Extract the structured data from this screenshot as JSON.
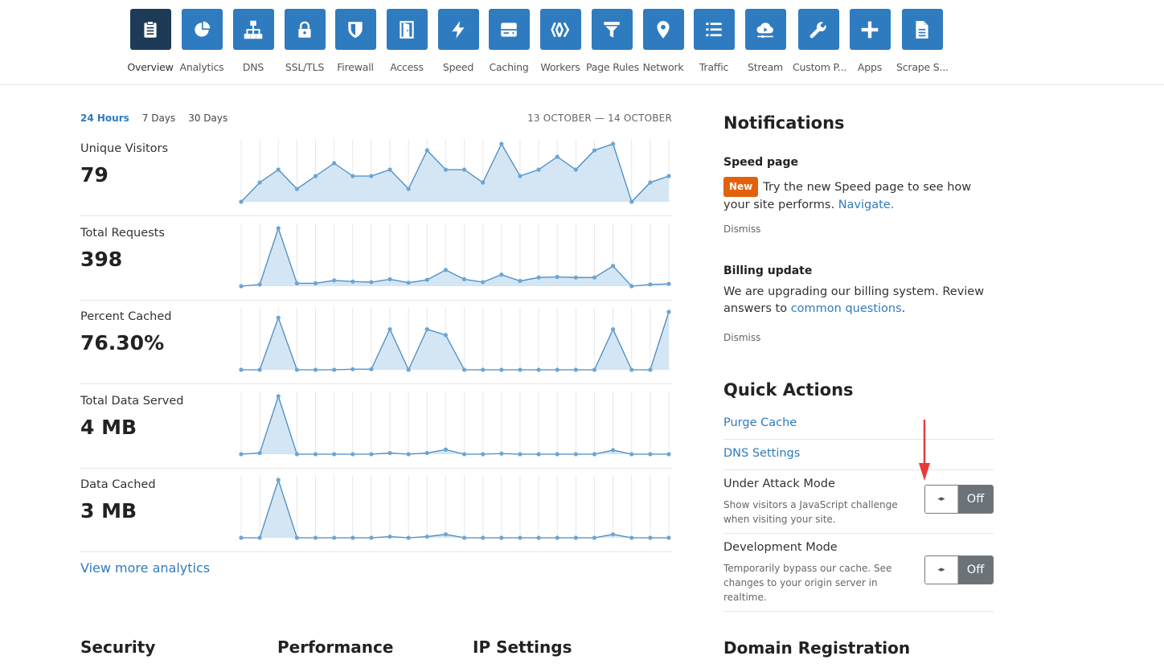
{
  "nav": {
    "items": [
      {
        "label": "Overview",
        "icon": "clipboard-icon",
        "active": true
      },
      {
        "label": "Analytics",
        "icon": "pie-chart-icon"
      },
      {
        "label": "DNS",
        "icon": "network-tree-icon"
      },
      {
        "label": "SSL/TLS",
        "icon": "lock-icon"
      },
      {
        "label": "Firewall",
        "icon": "shield-icon"
      },
      {
        "label": "Access",
        "icon": "door-icon"
      },
      {
        "label": "Speed",
        "icon": "lightning-icon"
      },
      {
        "label": "Caching",
        "icon": "server-icon"
      },
      {
        "label": "Workers",
        "icon": "workers-icon"
      },
      {
        "label": "Page Rules",
        "icon": "filter-icon"
      },
      {
        "label": "Network",
        "icon": "location-pin-icon"
      },
      {
        "label": "Traffic",
        "icon": "list-icon"
      },
      {
        "label": "Stream",
        "icon": "cloud-play-icon"
      },
      {
        "label": "Custom P...",
        "icon": "wrench-icon"
      },
      {
        "label": "Apps",
        "icon": "plus-icon"
      },
      {
        "label": "Scrape S...",
        "icon": "document-icon"
      }
    ],
    "active_color": "#1d3b57",
    "color": "#2f7bbf"
  },
  "analytics": {
    "range_tabs": [
      "24 Hours",
      "7 Days",
      "30 Days"
    ],
    "active_range": "24 Hours",
    "date_range": "13 OCTOBER — 14 OCTOBER",
    "view_more": "View more analytics",
    "metrics": [
      {
        "label": "Unique Visitors",
        "value": "79"
      },
      {
        "label": "Total Requests",
        "value": "398"
      },
      {
        "label": "Percent Cached",
        "value": "76.30%"
      },
      {
        "label": "Total Data Served",
        "value": "4 MB"
      },
      {
        "label": "Data Cached",
        "value": "3 MB"
      }
    ]
  },
  "chart_data": [
    {
      "type": "area",
      "series": [
        {
          "values": [
            0,
            3,
            5,
            2,
            4,
            6,
            4,
            4,
            5,
            2,
            8,
            5,
            5,
            3,
            9,
            4,
            5,
            7,
            5,
            8,
            9,
            0,
            3,
            4
          ]
        }
      ]
    },
    {
      "type": "area",
      "series": [
        {
          "values": [
            0,
            0.3,
            10,
            0.5,
            0.5,
            1,
            0.8,
            0.7,
            1.2,
            0.6,
            1.1,
            2.8,
            1.2,
            0.7,
            2,
            0.9,
            1.5,
            1.6,
            1.5,
            1.5,
            3.5,
            0,
            0.3,
            0.4
          ]
        }
      ]
    },
    {
      "type": "area",
      "series": [
        {
          "values": [
            0,
            0,
            90,
            0,
            0,
            0,
            1,
            1,
            70,
            0,
            70,
            60,
            0,
            0,
            0,
            0,
            0,
            0,
            0,
            0,
            70,
            0,
            0,
            100
          ]
        }
      ]
    },
    {
      "type": "area",
      "series": [
        {
          "values": [
            0,
            0.2,
            10,
            0,
            0,
            0,
            0,
            0,
            0.2,
            0,
            0.2,
            0.8,
            0,
            0,
            0.1,
            0,
            0,
            0,
            0,
            0,
            0.7,
            0,
            0,
            0
          ]
        }
      ]
    },
    {
      "type": "area",
      "series": [
        {
          "values": [
            0,
            0,
            10,
            0,
            0,
            0,
            0,
            0,
            0.2,
            0,
            0.2,
            0.6,
            0,
            0,
            0,
            0,
            0,
            0,
            0,
            0,
            0.6,
            0,
            0,
            0
          ]
        }
      ]
    }
  ],
  "notifications": {
    "title": "Notifications",
    "items": [
      {
        "title": "Speed page",
        "badge": "New",
        "text": "Try the new Speed page to see how your site performs.",
        "link": "Navigate.",
        "dismiss": "Dismiss"
      },
      {
        "title": "Billing update",
        "text": "We are upgrading our billing system. Review answers to",
        "link": "common questions",
        "suffix": ".",
        "dismiss": "Dismiss"
      }
    ]
  },
  "quick_actions": {
    "title": "Quick Actions",
    "purge_cache": "Purge Cache",
    "dns_settings": "DNS Settings",
    "under_attack": {
      "title": "Under Attack Mode",
      "desc": "Show visitors a JavaScript challenge when visiting your site.",
      "state": "Off"
    },
    "dev_mode": {
      "title": "Development Mode",
      "desc": "Temporarily bypass our cache. See changes to your origin server in realtime.",
      "state": "Off"
    },
    "knob_glyph": "◂▸"
  },
  "bottom": {
    "security": "Security",
    "performance": "Performance",
    "ip_settings": "IP Settings",
    "domain_registration": "Domain Registration"
  },
  "colors": {
    "accent": "#2f7bbf",
    "badge": "#e2620b",
    "annotation": "#e83a3a",
    "chart_line": "#4a8bc2",
    "chart_fill": "#d4e6f4"
  }
}
